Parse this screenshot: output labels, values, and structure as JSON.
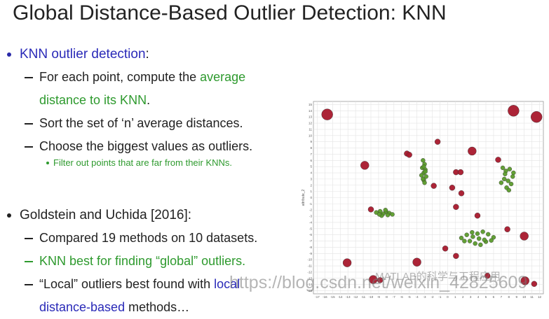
{
  "header": {
    "title": "Global Distance-Based Outlier Detection: KNN"
  },
  "bullets": [
    {
      "segments": [
        {
          "text": "KNN outlier detection",
          "color": "#2a2ab8"
        },
        {
          "text": ":"
        }
      ],
      "subitems": [
        {
          "segments": [
            {
              "text": "For each point, compute the "
            },
            {
              "text": "average distance to its KNN",
              "color": "#2e9a2e"
            },
            {
              "text": "."
            }
          ]
        },
        {
          "segments": [
            {
              "text": "Sort the set of ‘n’ average distances."
            }
          ]
        },
        {
          "segments": [
            {
              "text": "Choose the biggest values as outliers."
            }
          ],
          "subitems": [
            {
              "segments": [
                {
                  "text": "Filter out points that are far from their KNNs."
                }
              ]
            }
          ]
        }
      ]
    },
    {
      "segments": [
        {
          "text": "Goldstein and Uchida [2016]:"
        }
      ],
      "subitems": [
        {
          "segments": [
            {
              "text": "Compared 19 methods on 10 datasets."
            }
          ]
        },
        {
          "segments": [
            {
              "text": "KNN best for finding “global” outliers.",
              "color": "#2e9a2e"
            }
          ]
        },
        {
          "segments": [
            {
              "text": "“Local” outliers best found with "
            },
            {
              "text": "local distance-based",
              "color": "#2a2ab8"
            },
            {
              "text": " methods…"
            }
          ]
        }
      ]
    }
  ],
  "figure": {
    "type": "scatter",
    "y_label": "attribute_2",
    "grid": true,
    "xlim": [
      -17.5,
      12.5
    ],
    "ylim": [
      -15.5,
      15.5
    ],
    "xticks": [
      -17,
      -16,
      -15,
      -14,
      -13,
      -12,
      -11,
      -10,
      -9,
      -8,
      -7,
      -6,
      -5,
      -4,
      -3,
      -2,
      -1,
      0,
      1,
      2,
      3,
      4,
      5,
      6,
      7,
      8,
      9,
      10,
      11,
      12
    ],
    "yticks": [
      15,
      14,
      13,
      12,
      11,
      10,
      9,
      8,
      7,
      6,
      5,
      4,
      3,
      2,
      1,
      0,
      -1,
      -2,
      -3,
      -4,
      -5,
      -6,
      -7,
      -8,
      -9,
      -10,
      -11,
      -12,
      -13,
      -14,
      -15
    ],
    "series": [
      {
        "color": "#5b9b2b",
        "x": [
          -3.2,
          -3.0,
          -3.3,
          -2.9,
          -3.1,
          -3.4,
          -2.8,
          -3.1,
          -3.0,
          -3.2,
          -3.1,
          -2.9,
          7.2,
          7.6,
          8.1,
          8.5,
          7.4,
          7.9,
          8.3,
          7.0,
          7.7,
          8.0,
          7.5,
          8.6,
          -9.3,
          -8.8,
          -8.4,
          -8.0,
          -7.6,
          -7.2,
          -8.6,
          -8.1,
          -7.8,
          -8.9,
          1.8,
          2.5,
          3.2,
          3.9,
          4.6,
          5.3,
          6.0,
          2.9,
          3.6,
          4.3,
          5.0,
          4.1,
          3.3,
          4.8,
          2.2,
          5.7
        ],
        "y": [
          6.0,
          5.4,
          4.8,
          4.5,
          4.0,
          3.6,
          3.4,
          2.8,
          2.4,
          3.0,
          5.0,
          4.2,
          4.8,
          4.3,
          4.6,
          3.4,
          3.0,
          2.7,
          2.2,
          2.4,
          1.6,
          1.2,
          3.8,
          4.0,
          -2.4,
          -2.2,
          -2.6,
          -2.3,
          -2.5,
          -2.7,
          -2.9,
          -2.0,
          -2.8,
          -2.7,
          -6.5,
          -6.0,
          -5.6,
          -5.8,
          -5.5,
          -5.9,
          -6.4,
          -7.0,
          -7.4,
          -7.6,
          -7.1,
          -6.6,
          -6.3,
          -6.8,
          -7.0,
          -6.9
        ]
      },
      {
        "color": "#a8182c",
        "x": [
          -15.7,
          8.6,
          11.6,
          -10.8,
          -5.3,
          -5.0,
          -1.3,
          3.2,
          1.1,
          1.7,
          6.6,
          0.6,
          1.8,
          -1.8,
          1.1,
          -10.0,
          3.9,
          7.8,
          10.0,
          -0.3,
          1.1,
          -13.1,
          -4.0,
          -9.7,
          -8.8,
          10.1,
          11.3,
          5.2
        ],
        "y": [
          13.4,
          14.0,
          13.0,
          5.2,
          7.1,
          6.9,
          9.0,
          7.5,
          4.1,
          4.1,
          6.1,
          1.6,
          0.7,
          1.9,
          -1.5,
          -1.9,
          -2.9,
          -5.1,
          -6.2,
          -8.2,
          -9.4,
          -10.5,
          -10.4,
          -13.2,
          -13.3,
          -13.4,
          -13.9,
          -12.6
        ],
        "sizes": [
          3,
          3,
          3,
          2,
          1,
          1,
          1,
          2,
          1,
          1,
          1,
          1,
          1,
          1,
          1,
          1,
          1,
          1,
          2,
          1,
          1,
          2,
          2,
          2,
          1,
          2,
          1,
          1
        ]
      }
    ]
  },
  "watermarks": [
    "https://blog.csdn.net/weixin_42825609",
    "MATLAB的科学与工程应用"
  ]
}
